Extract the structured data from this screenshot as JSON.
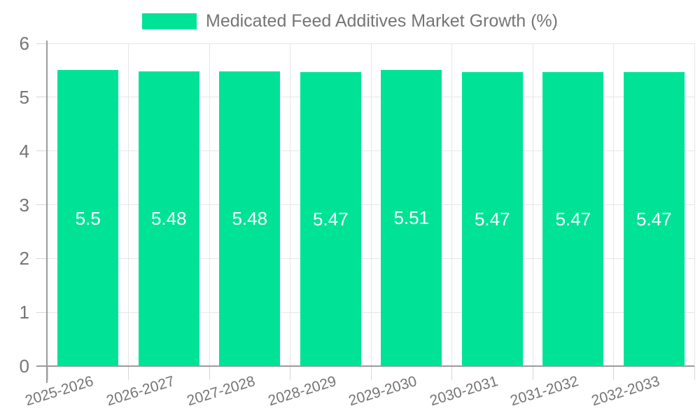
{
  "legend": {
    "label": "Medicated Feed Additives Market Growth (%)"
  },
  "chart_data": {
    "type": "bar",
    "title": "Medicated Feed Additives Market Growth (%)",
    "categories": [
      "2025-2026",
      "2026-2027",
      "2027-2028",
      "2028-2029",
      "2029-2030",
      "2030-2031",
      "2031-2032",
      "2032-2033"
    ],
    "values": [
      5.5,
      5.48,
      5.48,
      5.47,
      5.51,
      5.47,
      5.47,
      5.47
    ],
    "value_labels": [
      "5.5",
      "5.48",
      "5.48",
      "5.47",
      "5.51",
      "5.47",
      "5.47",
      "5.47"
    ],
    "xlabel": "",
    "ylabel": "",
    "ylim": [
      0,
      6
    ],
    "yticks": [
      0,
      1,
      2,
      3,
      4,
      5,
      6
    ],
    "grid": true,
    "legend_position": "top",
    "bar_color": "#00E396",
    "value_label_color": "#FFFFFF",
    "axis_text_color": "#757575",
    "grid_color": "#E6E6E6",
    "tick_color": "#D6D6D6",
    "axis_line_color": "#9B9B9B"
  }
}
